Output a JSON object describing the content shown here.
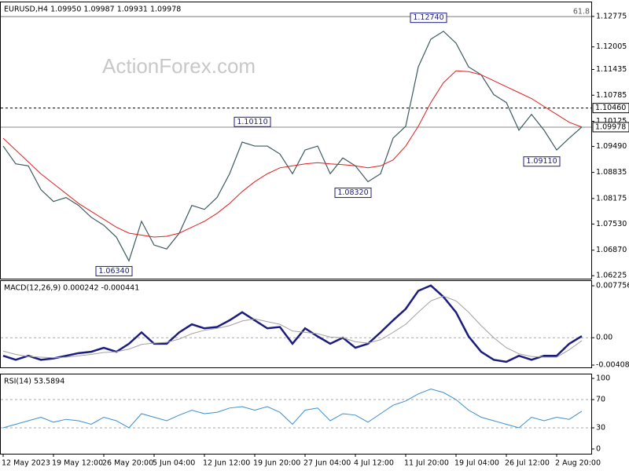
{
  "chart_data": [
    {
      "type": "line",
      "title": "EURUSD,H4  1.09950 1.09987 1.09931 1.09978",
      "watermark": "ActionForex.com",
      "ylim": [
        1.0615,
        1.1315
      ],
      "yticks": [
        1.12775,
        1.12005,
        1.11435,
        1.10785,
        1.10125,
        {
          "value": 1.0949,
          "label": "1.09490"
        },
        1.08835,
        1.08175,
        {
          "value": 1.0753,
          "label": "1.07530"
        },
        {
          "value": 1.0687,
          "label": "1.06870"
        },
        1.06225
      ],
      "fib_level": {
        "label": "61.8",
        "price": 1.1277
      },
      "levels": [
        {
          "value": 1.1046,
          "label": "1.10460",
          "style": "dashed"
        },
        {
          "value": 1.09978,
          "style": "solid"
        }
      ],
      "annotations": [
        {
          "value": 1.1274,
          "label": "1.12740",
          "x": 35
        },
        {
          "value": 1.1011,
          "label": "1.10110",
          "x": 21
        },
        {
          "value": 1.0832,
          "label": "1.08320",
          "x": 29
        },
        {
          "value": 1.0911,
          "label": "1.09110",
          "x": 44
        },
        {
          "value": 1.0634,
          "label": "1.06340",
          "x": 10
        }
      ],
      "series": [
        {
          "color": "#3d5a60",
          "width": 1.2,
          "values": [
            1.095,
            1.0905,
            1.09,
            1.084,
            1.081,
            1.082,
            1.08,
            1.077,
            1.075,
            1.072,
            1.066,
            1.076,
            1.07,
            1.069,
            1.073,
            1.08,
            1.079,
            1.082,
            1.088,
            1.096,
            1.095,
            1.095,
            1.093,
            1.088,
            1.094,
            1.095,
            1.088,
            1.092,
            1.09,
            1.086,
            1.088,
            1.097,
            1.1,
            1.115,
            1.122,
            1.124,
            1.121,
            1.115,
            1.113,
            1.108,
            1.106,
            1.099,
            1.103,
            1.099,
            1.094,
            1.097,
            1.0998
          ]
        },
        {
          "color": "#e02020",
          "width": 1,
          "values": [
            1.097,
            1.094,
            1.091,
            1.088,
            1.0855,
            1.083,
            1.0805,
            1.0785,
            1.0765,
            1.0745,
            1.073,
            1.0725,
            1.072,
            1.0722,
            1.073,
            1.0745,
            1.076,
            1.078,
            1.0805,
            1.0835,
            1.086,
            1.088,
            1.0895,
            1.09,
            1.0905,
            1.0908,
            1.0905,
            1.0903,
            1.09,
            1.0895,
            1.09,
            1.0915,
            1.095,
            1.1,
            1.106,
            1.111,
            1.114,
            1.1138,
            1.113,
            1.1115,
            1.11,
            1.1085,
            1.107,
            1.105,
            1.103,
            1.101,
            1.0998
          ]
        }
      ]
    },
    {
      "type": "line",
      "title": "MACD(12,26,9) 0.000242 -0.000441",
      "ylim": [
        -0.00443,
        0.00858
      ],
      "yticks": [
        0.007756,
        {
          "value": 0,
          "label": "0.00"
        },
        -0.004086
      ],
      "levels": [
        0
      ],
      "series": [
        {
          "color": "#1c1c80",
          "width": 2.5,
          "values": [
            -0.0027,
            -0.0033,
            -0.0027,
            -0.0033,
            -0.0031,
            -0.0027,
            -0.0023,
            -0.0021,
            -0.0015,
            -0.0021,
            -0.0009,
            0.0008,
            -0.0009,
            -0.0009,
            0.0008,
            0.002,
            0.0014,
            0.0016,
            0.0026,
            0.0038,
            0.0026,
            0.0014,
            0.0016,
            -0.0009,
            0.0014,
            0.0002,
            -0.0009,
            0,
            -0.0015,
            -0.0009,
            0.0008,
            0.0026,
            0.0043,
            0.007,
            0.0078,
            0.0061,
            0.0038,
            0.0002,
            -0.0021,
            -0.0033,
            -0.0036,
            -0.0027,
            -0.0033,
            -0.0027,
            -0.0027,
            -0.0009,
            0.00024
          ]
        },
        {
          "color": "#a0a0a0",
          "width": 1,
          "values": [
            -0.002,
            -0.0025,
            -0.0028,
            -0.0029,
            -0.003,
            -0.0029,
            -0.0027,
            -0.0025,
            -0.0022,
            -0.0021,
            -0.0017,
            -0.001,
            -0.0008,
            -0.0007,
            -0.0002,
            0.0006,
            0.0011,
            0.0014,
            0.0018,
            0.0025,
            0.0028,
            0.0024,
            0.002,
            0.001,
            0.0008,
            0.0006,
            0.0001,
            0,
            -0.0006,
            -0.0008,
            -0.0003,
            0.0008,
            0.002,
            0.0038,
            0.0055,
            0.0062,
            0.0055,
            0.0038,
            0.0018,
            0,
            -0.0015,
            -0.0024,
            -0.0028,
            -0.0029,
            -0.0029,
            -0.0018,
            -0.00044
          ]
        }
      ]
    },
    {
      "type": "line",
      "title": "RSI(14) 53.5894",
      "ylim": [
        -6.7,
        106.7
      ],
      "yticks": [
        100,
        70,
        30,
        0
      ],
      "levels": [
        70,
        30
      ],
      "xlim": [
        0,
        46
      ],
      "xticks": [
        {
          "value": 0,
          "label": "12 May 2023"
        },
        {
          "value": 4,
          "label": "19 May 12:00"
        },
        {
          "value": 8,
          "label": "26 May 20:00"
        },
        {
          "value": 12,
          "label": "5 Jun 04:00"
        },
        {
          "value": 16,
          "label": "12 Jun 12:00"
        },
        {
          "value": 20,
          "label": "19 Jun 20:00"
        },
        {
          "value": 24,
          "label": "27 Jun 04:00"
        },
        {
          "value": 28,
          "label": "4 Jul 12:00"
        },
        {
          "value": 32,
          "label": "11 Jul 20:00"
        },
        {
          "value": 36,
          "label": "19 Jul 04:00"
        },
        {
          "value": 40,
          "label": "26 Jul 12:00"
        },
        {
          "value": 44,
          "label": "2 Aug 20:00"
        }
      ],
      "series": [
        {
          "color": "#3a8fd0",
          "width": 1,
          "values": [
            30,
            35,
            40,
            45,
            38,
            42,
            40,
            35,
            45,
            40,
            30,
            50,
            45,
            40,
            48,
            55,
            50,
            52,
            58,
            60,
            55,
            60,
            52,
            35,
            55,
            58,
            40,
            50,
            48,
            38,
            50,
            62,
            68,
            78,
            85,
            80,
            70,
            55,
            45,
            40,
            35,
            30,
            45,
            40,
            45,
            42,
            53.5894
          ]
        }
      ]
    }
  ]
}
